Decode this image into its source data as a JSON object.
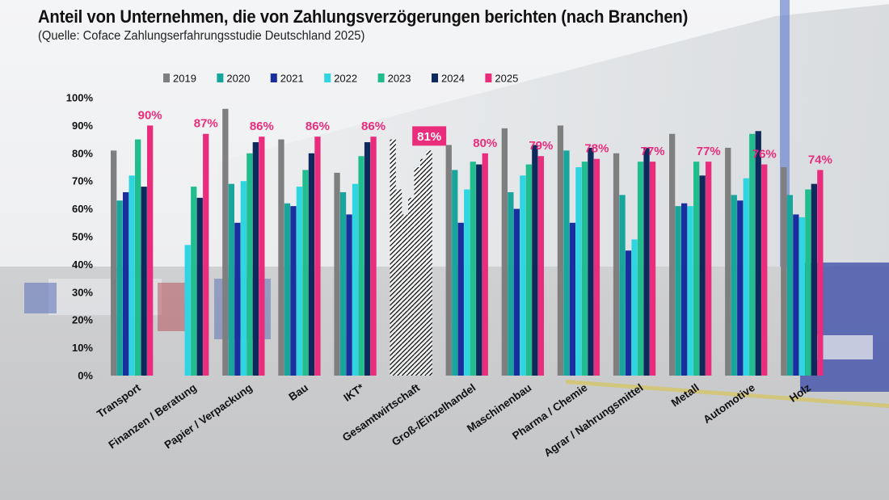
{
  "chart_data": {
    "type": "bar",
    "title": "Anteil von Unternehmen, die von Zahlungsverzögerungen berichten (nach Branchen)",
    "subtitle": "(Quelle: Coface Zahlungserfahrungsstudie Deutschland 2025)",
    "xlabel": "",
    "ylabel": "",
    "ylim": [
      0,
      100
    ],
    "yticks": [
      0,
      10,
      20,
      30,
      40,
      50,
      60,
      70,
      80,
      90,
      100
    ],
    "ytick_labels": [
      "0%",
      "10%",
      "20%",
      "30%",
      "40%",
      "50%",
      "60%",
      "70%",
      "80%",
      "90%",
      "100%"
    ],
    "legend_position": "top-center",
    "highlight_category": "Gesamtwirtschaft",
    "categories": [
      "Transport",
      "Finanzen / Beratung",
      "Papier / Verpackung",
      "Bau",
      "IKT*",
      "Gesamtwirtschaft",
      "Groß-/Einzelhandel",
      "Maschinenbau",
      "Pharma / Chemie",
      "Agrar / Nahrungsmittel",
      "Metall",
      "Automotive",
      "Holz"
    ],
    "series": [
      {
        "name": "2019",
        "color": "#7f7f7f",
        "values": [
          81,
          null,
          96,
          85,
          73,
          85,
          83,
          89,
          90,
          80,
          87,
          82,
          75
        ]
      },
      {
        "name": "2020",
        "color": "#18a59b",
        "values": [
          63,
          null,
          69,
          62,
          66,
          67,
          74,
          66,
          81,
          65,
          61,
          65,
          65
        ]
      },
      {
        "name": "2021",
        "color": "#1a2f9e",
        "values": [
          66,
          null,
          55,
          61,
          58,
          58,
          55,
          60,
          55,
          45,
          62,
          63,
          58
        ]
      },
      {
        "name": "2022",
        "color": "#2fd6e2",
        "values": [
          72,
          47,
          70,
          68,
          69,
          64,
          67,
          72,
          75,
          49,
          61,
          71,
          57
        ]
      },
      {
        "name": "2023",
        "color": "#21bd8e",
        "values": [
          85,
          68,
          80,
          74,
          79,
          75,
          77,
          76,
          77,
          77,
          77,
          87,
          67
        ]
      },
      {
        "name": "2024",
        "color": "#0e2a5c",
        "values": [
          68,
          64,
          84,
          80,
          84,
          78,
          76,
          83,
          82,
          82,
          72,
          88,
          69
        ]
      },
      {
        "name": "2025",
        "color": "#ea2c7d",
        "values": [
          90,
          87,
          86,
          86,
          86,
          81,
          80,
          79,
          78,
          77,
          77,
          76,
          74
        ]
      }
    ],
    "data_labels": [
      "90%",
      "87%",
      "86%",
      "86%",
      "86%",
      "81%",
      "80%",
      "79%",
      "78%",
      "77%",
      "77%",
      "76%",
      "74%"
    ]
  }
}
